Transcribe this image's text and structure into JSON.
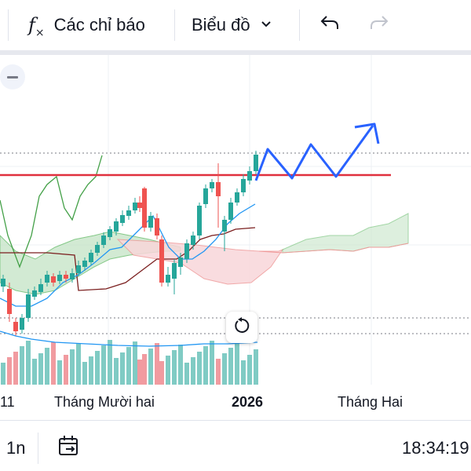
{
  "toolbar": {
    "indicators_label": "Các chỉ báo",
    "chart_type_label": "Biểu đồ",
    "icons": [
      "fx-icon",
      "chevron-down-icon",
      "undo-icon",
      "redo-icon"
    ]
  },
  "chart": {
    "x_labels": [
      "11",
      "Tháng Mười hai",
      "2026",
      "Tháng Hai"
    ],
    "colors": {
      "up": "#26a69a",
      "down": "#ef5350",
      "resistance": "#e0303e",
      "drawing": "#2962ff",
      "kijun": "#7b1f1f",
      "tenkan": "#2196f3",
      "chikou": "#43a047",
      "cloud_green": "#c8e6c9",
      "cloud_red": "#f8d7da",
      "volume_up": "#80cbc4",
      "volume_down": "#f19ba0",
      "volume_ma": "#2196f3"
    }
  },
  "bottombar": {
    "timeframe_label": "1n",
    "time_label": "18:34:19",
    "icons": [
      "calendar-goto-icon"
    ]
  }
}
